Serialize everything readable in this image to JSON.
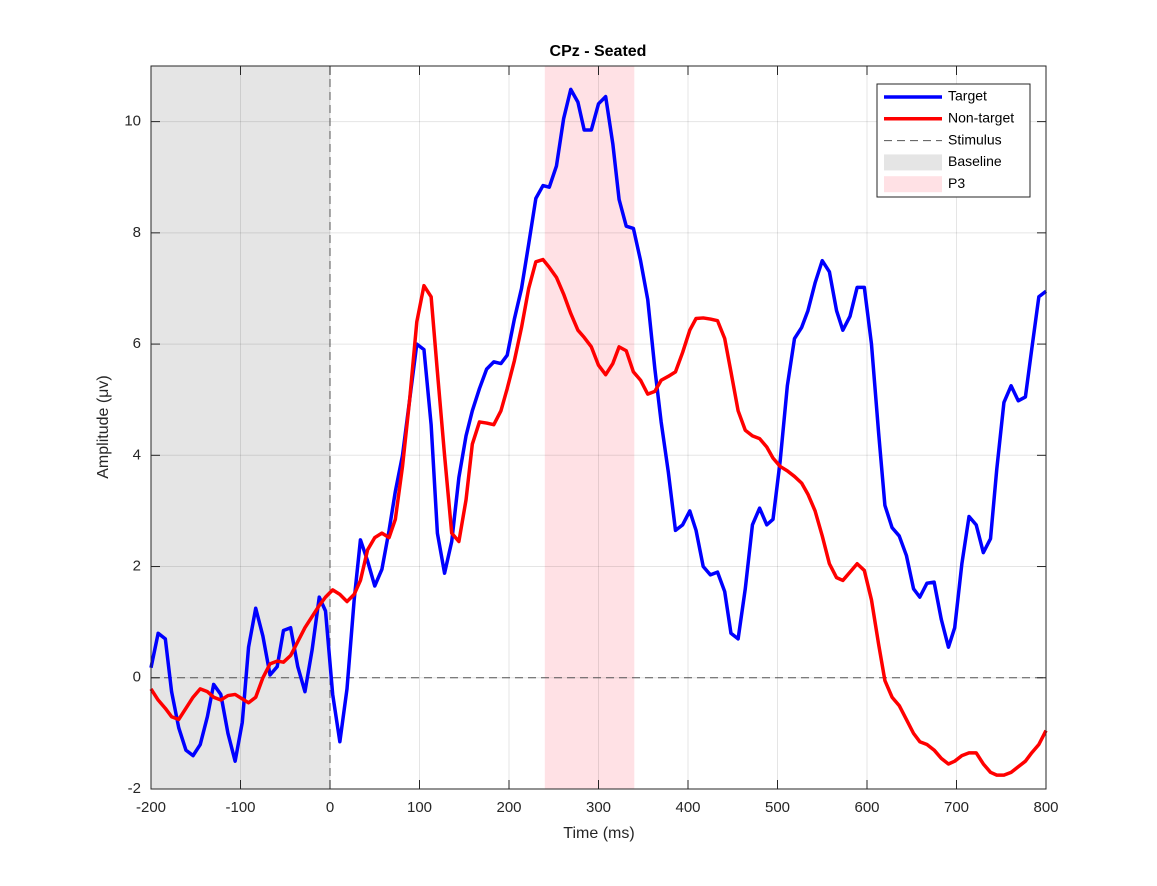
{
  "chart_data": {
    "type": "line",
    "title": "CPz - Seated",
    "xlabel": "Time (ms)",
    "ylabel": "Amplitude (μv)",
    "xlim": [
      -200,
      800
    ],
    "ylim": [
      -2,
      11
    ],
    "xticks": [
      -200,
      -100,
      0,
      100,
      200,
      300,
      400,
      500,
      600,
      700,
      800
    ],
    "yticks": [
      -2,
      0,
      2,
      4,
      6,
      8,
      10
    ],
    "grid": true,
    "legend": "northeast",
    "x": [
      -200,
      -192,
      -184,
      -177,
      -169,
      -161,
      -153,
      -145,
      -137,
      -130,
      -122,
      -114,
      -106,
      -98,
      -91,
      -83,
      -75,
      -67,
      -59,
      -52,
      -44,
      -36,
      -28,
      -20,
      -12,
      -5,
      3,
      11,
      19,
      27,
      34,
      42,
      50,
      58,
      66,
      73,
      81,
      89,
      97,
      105,
      113,
      120,
      128,
      136,
      144,
      152,
      159,
      167,
      175,
      183,
      191,
      198,
      206,
      214,
      222,
      230,
      238,
      245,
      253,
      261,
      269,
      277,
      284,
      292,
      300,
      308,
      316,
      323,
      331,
      339,
      347,
      355,
      363,
      370,
      378,
      386,
      394,
      402,
      409,
      417,
      425,
      433,
      441,
      448,
      456,
      464,
      472,
      480,
      488,
      495,
      503,
      511,
      519,
      527,
      534,
      542,
      550,
      558,
      566,
      573,
      581,
      589,
      597,
      605,
      613,
      620,
      628,
      636,
      644,
      652,
      659,
      667,
      675,
      683,
      691,
      698,
      706,
      714,
      722,
      730,
      738,
      745,
      753,
      761,
      769,
      777,
      784,
      792,
      800
    ],
    "series": [
      {
        "name": "Target",
        "color": "#0000ff",
        "values": [
          0.18,
          0.8,
          0.7,
          -0.25,
          -0.9,
          -1.3,
          -1.4,
          -1.2,
          -0.7,
          -0.12,
          -0.3,
          -1.0,
          -1.5,
          -0.8,
          0.55,
          1.25,
          0.75,
          0.05,
          0.2,
          0.85,
          0.9,
          0.2,
          -0.25,
          0.5,
          1.45,
          1.2,
          -0.3,
          -1.15,
          -0.2,
          1.4,
          2.48,
          2.1,
          1.65,
          1.95,
          2.65,
          3.35,
          4.0,
          5.0,
          6.0,
          5.9,
          4.55,
          2.6,
          1.88,
          2.45,
          3.6,
          4.35,
          4.8,
          5.2,
          5.55,
          5.68,
          5.65,
          5.8,
          6.45,
          7.0,
          7.8,
          8.62,
          8.85,
          8.82,
          9.2,
          10.05,
          10.58,
          10.35,
          9.85,
          9.85,
          10.32,
          10.45,
          9.6,
          8.6,
          8.12,
          8.08,
          7.5,
          6.8,
          5.55,
          4.6,
          3.7,
          2.65,
          2.75,
          3.0,
          2.65,
          2.0,
          1.85,
          1.9,
          1.55,
          0.8,
          0.7,
          1.6,
          2.75,
          3.05,
          2.75,
          2.85,
          3.9,
          5.25,
          6.1,
          6.3,
          6.6,
          7.1,
          7.5,
          7.3,
          6.6,
          6.25,
          6.5,
          7.02,
          7.02,
          6.0,
          4.4,
          3.1,
          2.7,
          2.55,
          2.2,
          1.6,
          1.45,
          1.7,
          1.72,
          1.05,
          0.55,
          0.9,
          2.05,
          2.9,
          2.75,
          2.25,
          2.5,
          3.75,
          4.95,
          5.25,
          4.98,
          5.05,
          5.9,
          6.85,
          6.95
        ]
      },
      {
        "name": "Non-target",
        "color": "#ff0000",
        "values": [
          -0.2,
          -0.4,
          -0.55,
          -0.7,
          -0.75,
          -0.55,
          -0.35,
          -0.2,
          -0.25,
          -0.35,
          -0.4,
          -0.32,
          -0.3,
          -0.38,
          -0.45,
          -0.35,
          0.0,
          0.25,
          0.3,
          0.28,
          0.4,
          0.65,
          0.9,
          1.1,
          1.3,
          1.45,
          1.58,
          1.5,
          1.37,
          1.5,
          1.75,
          2.3,
          2.52,
          2.6,
          2.52,
          2.85,
          3.8,
          5.0,
          6.4,
          7.05,
          6.85,
          5.5,
          4.0,
          2.6,
          2.45,
          3.2,
          4.2,
          4.6,
          4.58,
          4.55,
          4.8,
          5.2,
          5.7,
          6.3,
          7.0,
          7.48,
          7.52,
          7.38,
          7.2,
          6.9,
          6.55,
          6.25,
          6.12,
          5.95,
          5.62,
          5.45,
          5.65,
          5.95,
          5.88,
          5.5,
          5.35,
          5.1,
          5.15,
          5.35,
          5.42,
          5.5,
          5.85,
          6.25,
          6.46,
          6.47,
          6.45,
          6.42,
          6.1,
          5.5,
          4.8,
          4.45,
          4.35,
          4.3,
          4.15,
          3.95,
          3.8,
          3.72,
          3.62,
          3.5,
          3.3,
          3.0,
          2.55,
          2.05,
          1.8,
          1.75,
          1.9,
          2.05,
          1.93,
          1.4,
          0.6,
          -0.05,
          -0.35,
          -0.5,
          -0.75,
          -1.0,
          -1.15,
          -1.2,
          -1.3,
          -1.45,
          -1.55,
          -1.5,
          -1.4,
          -1.35,
          -1.35,
          -1.55,
          -1.7,
          -1.75,
          -1.75,
          -1.7,
          -1.6,
          -1.5,
          -1.35,
          -1.2,
          -0.95
        ]
      }
    ],
    "stimulus": {
      "name": "Stimulus",
      "x": 0,
      "color": "#555555"
    },
    "zero_line": 0,
    "regions": [
      {
        "name": "Baseline",
        "start": -200,
        "end": 0,
        "color": "#e5e5e5"
      },
      {
        "name": "P3",
        "start": 240,
        "end": 340,
        "color": "#ffe1e5"
      }
    ]
  }
}
